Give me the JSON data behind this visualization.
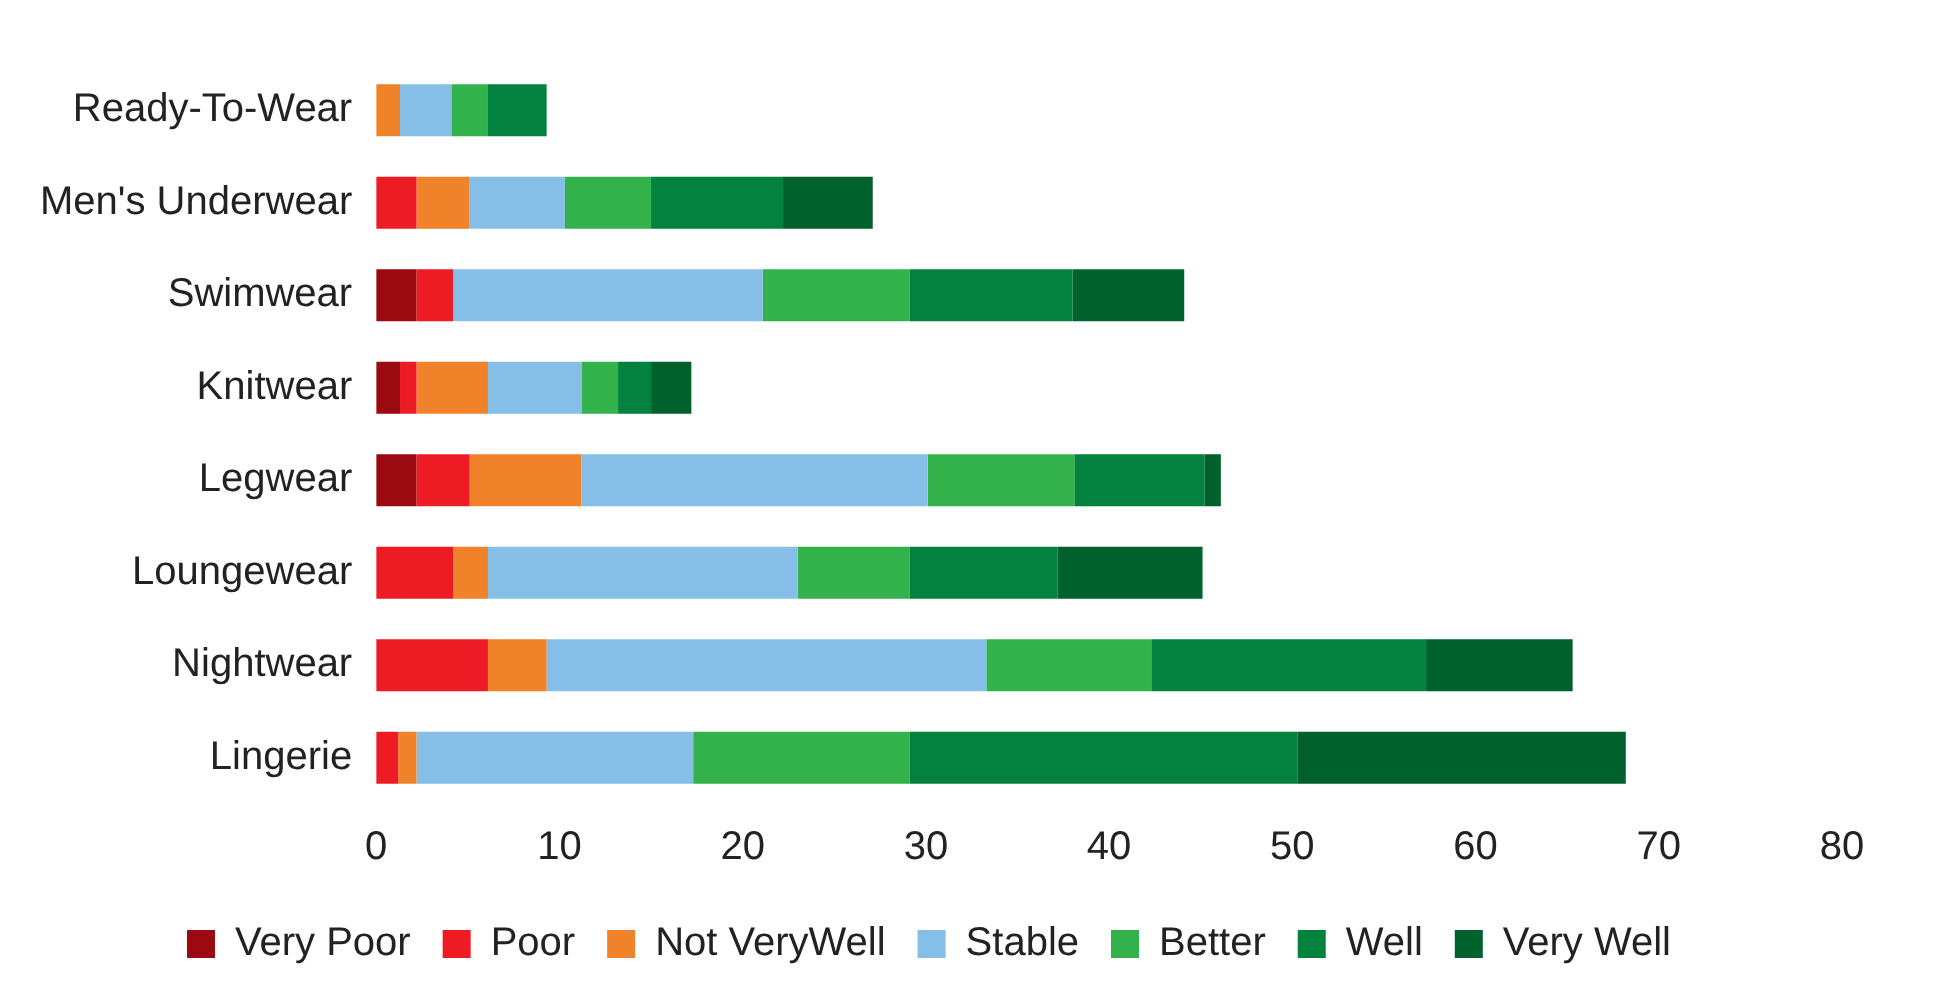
{
  "chart_data": {
    "type": "bar",
    "orientation": "horizontal",
    "stacked": true,
    "categories": [
      "Ready-To-Wear",
      "Men's Underwear",
      "Swimwear",
      "Knitwear",
      "Legwear",
      "Loungewear",
      "Nightwear",
      "Lingerie"
    ],
    "series": [
      {
        "name": "Very Poor",
        "color": "#9b0a10",
        "values": [
          0,
          0,
          2.2,
          1.3,
          2.2,
          0,
          0,
          0
        ]
      },
      {
        "name": "Poor",
        "color": "#ed1c24",
        "values": [
          0,
          2.2,
          2,
          0.9,
          2.9,
          4.2,
          6.1,
          1.2
        ]
      },
      {
        "name": "Not VeryWell",
        "color": "#f0822a",
        "values": [
          1.3,
          2.9,
          0,
          3.9,
          6.1,
          1.9,
          3.2,
          1
        ]
      },
      {
        "name": "Stable",
        "color": "#85bfe8",
        "values": [
          2.8,
          5.2,
          16.9,
          5.1,
          18.9,
          16.9,
          24,
          15.1
        ]
      },
      {
        "name": "Better",
        "color": "#33b24b",
        "values": [
          2,
          4.7,
          8,
          2,
          8,
          6.1,
          9,
          11.8
        ]
      },
      {
        "name": "Well",
        "color": "#02823e",
        "values": [
          3.2,
          7.2,
          8.9,
          1.8,
          7.1,
          8.1,
          15,
          21.2
        ]
      },
      {
        "name": "Very Well",
        "color": "#01612c",
        "values": [
          0,
          4.9,
          6.1,
          2.2,
          0.9,
          7.9,
          8,
          17.9
        ]
      }
    ],
    "xlim": [
      0,
      80
    ],
    "xticks": [
      0,
      10,
      20,
      30,
      40,
      50,
      60,
      70,
      80
    ],
    "grid": false,
    "legend": "bottom"
  }
}
